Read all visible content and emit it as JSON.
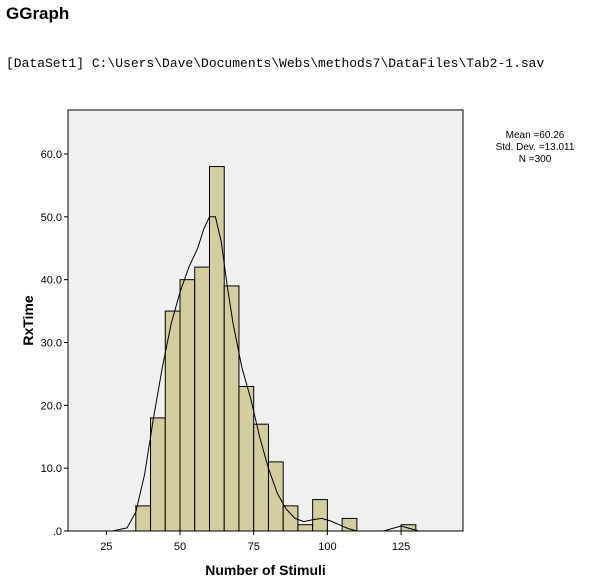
{
  "output": {
    "heading": "GGraph",
    "dataset_line": "[DataSet1] C:\\Users\\Dave\\Documents\\Webs\\methods7\\DataFiles\\Tab2-1.sav"
  },
  "colors": {
    "bar_fill": "#d3cea0",
    "bar_stroke": "#000000",
    "plot_background": "#f0f0f0",
    "curve": "#000000"
  },
  "chart_data": {
    "type": "bar",
    "subtype": "histogram with normal curve",
    "xlabel": "Number of Stimuli",
    "ylabel": "RxTime",
    "xlim": [
      12,
      146
    ],
    "ylim": [
      0,
      67
    ],
    "x_ticks": [
      25,
      50,
      75,
      100,
      125
    ],
    "y_ticks": [
      {
        "value": 0,
        "label": ".0"
      },
      {
        "value": 10,
        "label": "10.0"
      },
      {
        "value": 20,
        "label": "20.0"
      },
      {
        "value": 30,
        "label": "30.0"
      },
      {
        "value": 40,
        "label": "40.0"
      },
      {
        "value": 50,
        "label": "50.0"
      },
      {
        "value": 60,
        "label": "60.0"
      }
    ],
    "bin_width": 5,
    "bins": [
      {
        "start": 35,
        "value": 4
      },
      {
        "start": 40,
        "value": 18
      },
      {
        "start": 45,
        "value": 35
      },
      {
        "start": 50,
        "value": 40
      },
      {
        "start": 55,
        "value": 42
      },
      {
        "start": 60,
        "value": 58
      },
      {
        "start": 65,
        "value": 39
      },
      {
        "start": 70,
        "value": 23
      },
      {
        "start": 75,
        "value": 17
      },
      {
        "start": 80,
        "value": 11
      },
      {
        "start": 85,
        "value": 4
      },
      {
        "start": 90,
        "value": 1
      },
      {
        "start": 95,
        "value": 5
      },
      {
        "start": 100,
        "value": 0
      },
      {
        "start": 105,
        "value": 2
      },
      {
        "start": 110,
        "value": 0
      },
      {
        "start": 115,
        "value": 0
      },
      {
        "start": 120,
        "value": 0
      },
      {
        "start": 125,
        "value": 1
      }
    ],
    "curve": {
      "x": [
        22,
        27,
        32,
        35,
        38,
        41,
        44,
        47,
        50,
        53,
        56,
        58,
        60,
        62,
        64,
        66,
        68,
        71,
        74,
        77,
        80,
        83,
        86,
        89,
        92,
        95,
        98,
        101,
        104,
        107,
        110,
        113,
        116,
        119,
        122,
        125,
        128,
        131,
        134
      ],
      "y": [
        0,
        0,
        0.5,
        3,
        9,
        18,
        26,
        33,
        38,
        42,
        45,
        48,
        50,
        50,
        46,
        39,
        33,
        26,
        21,
        15,
        10,
        6,
        3.5,
        2,
        1.5,
        1.8,
        2,
        1.6,
        1,
        0.4,
        0,
        0,
        0,
        0,
        0.4,
        0.8,
        0.4,
        0,
        0
      ]
    },
    "stats": {
      "mean": "Mean =60.26",
      "std_dev": "Std. Dev. =13.011",
      "n": "N =300"
    }
  }
}
